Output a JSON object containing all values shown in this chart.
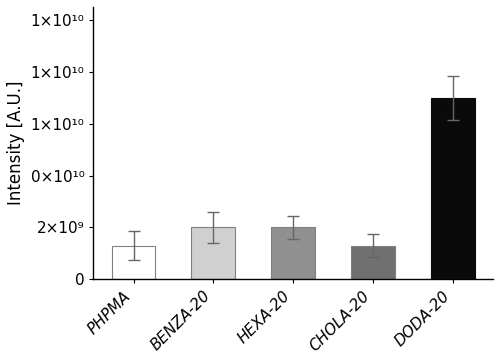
{
  "categories": [
    "PHPMA",
    "BENZA-20",
    "HEXA-20",
    "CHOLA-20",
    "DODA-20"
  ],
  "values": [
    1300000000.0,
    2000000000.0,
    2000000000.0,
    1300000000.0,
    7000000000.0
  ],
  "errors": [
    550000000.0,
    600000000.0,
    450000000.0,
    450000000.0,
    850000000.0
  ],
  "bar_colors": [
    "#ffffff",
    "#d0d0d0",
    "#909090",
    "#707070",
    "#0a0a0a"
  ],
  "bar_edgecolors": [
    "#808080",
    "#808080",
    "#808080",
    "#808080",
    "#0a0a0a"
  ],
  "ylabel": "Intensity [A.U.]",
  "ylim": [
    0,
    10500000000.0
  ],
  "yticks": [
    0,
    2000000000.0,
    4000000000.0,
    6000000000.0,
    8000000000.0,
    10000000000.0
  ],
  "bar_width": 0.55,
  "error_capsize": 4,
  "error_color": "#666666",
  "background_color": "#ffffff",
  "ylabel_fontsize": 12,
  "tick_fontsize": 11
}
